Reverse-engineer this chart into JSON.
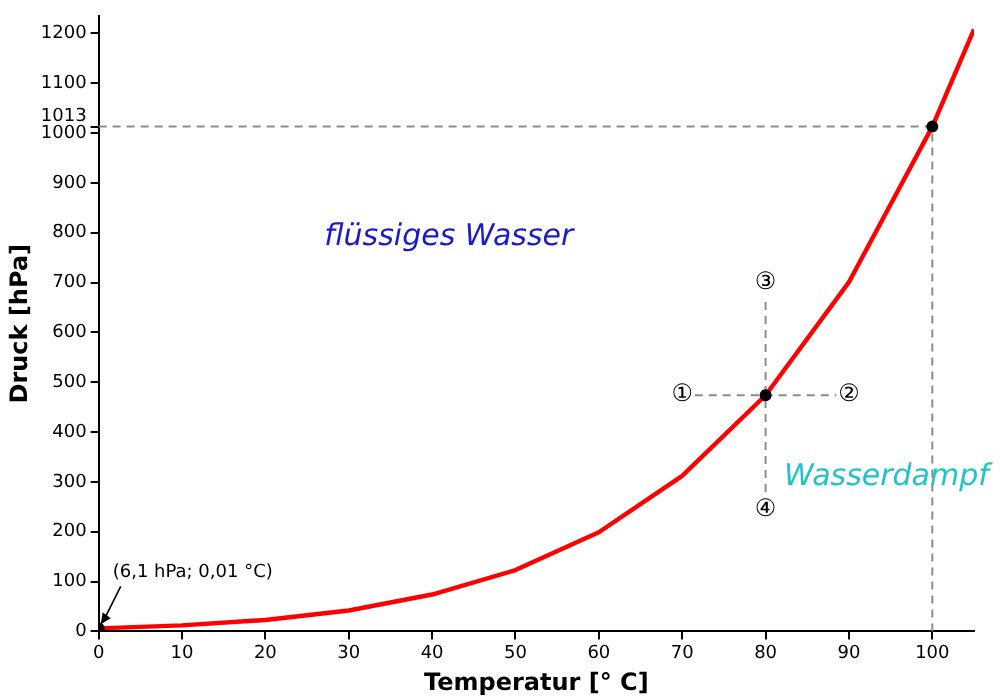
{
  "chart_data": {
    "type": "line",
    "xlabel": "Temperatur [° C]",
    "ylabel": "Druck [hPa]",
    "xlim": [
      0,
      105
    ],
    "xticks": [
      0,
      10,
      20,
      30,
      40,
      50,
      60,
      70,
      80,
      90,
      100
    ],
    "ylim": [
      0,
      1235
    ],
    "yticks": [
      0,
      100,
      200,
      300,
      400,
      500,
      600,
      700,
      800,
      900,
      1000,
      1013,
      1100,
      1200
    ],
    "grid": false,
    "legend": false,
    "series": [
      {
        "color": "#ff0000",
        "line_style": "solid",
        "x": [
          0,
          10,
          20,
          30,
          40,
          50,
          60,
          70,
          80,
          90,
          100,
          105
        ],
        "values": [
          6,
          12,
          23,
          42,
          74,
          123,
          199,
          312,
          474,
          701,
          1013,
          1208
        ]
      },
      {
        "type": "line",
        "color": "#8c8c8c",
        "line_style": "dashed",
        "x": [
          0,
          100
        ],
        "values": [
          1013,
          1013
        ]
      },
      {
        "type": "line",
        "color": "#8c8c8c",
        "line_style": "dashed",
        "x": [
          100,
          100
        ],
        "values": [
          0,
          1013
        ]
      },
      {
        "type": "line",
        "color": "#8c8c8c",
        "line_style": "dashed",
        "x": [
          71.5,
          88.5
        ],
        "values": [
          474,
          474
        ]
      },
      {
        "type": "line",
        "color": "#8c8c8c",
        "line_style": "dashed",
        "x": [
          80,
          80
        ],
        "values": [
          280,
          665
        ]
      },
      {
        "type": "scatter",
        "color": "#000000",
        "marker": "circle",
        "x": [
          0,
          80,
          100
        ],
        "values": [
          6.1,
          474,
          1013
        ]
      }
    ],
    "annotations": [
      {
        "text": "①",
        "x": 70,
        "y": 474
      },
      {
        "text": "②",
        "x": 90,
        "y": 474
      },
      {
        "text": "③",
        "x": 80,
        "y": 700
      },
      {
        "text": "④",
        "x": 80,
        "y": 245
      },
      "flüssiges Wasser",
      "Wasserdampf",
      {
        "text": "(6,1 hPa; 0,01 °C)",
        "x": 0.01,
        "y": 6.1
      }
    ]
  }
}
